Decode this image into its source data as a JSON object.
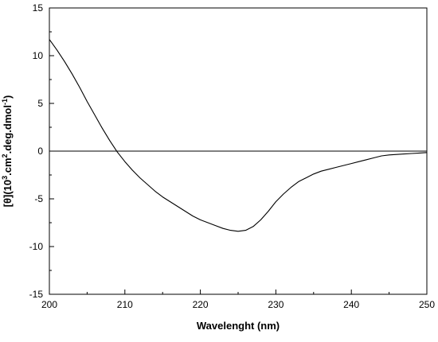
{
  "chart_data": {
    "type": "line",
    "title": "",
    "xlabel": "Wavelenght (nm)",
    "ylabel": {
      "parts": [
        {
          "text": "[θ](10",
          "sup": false
        },
        {
          "text": "3",
          "sup": true
        },
        {
          "text": ".cm",
          "sup": false
        },
        {
          "text": "2",
          "sup": true
        },
        {
          "text": ".deg.dmol",
          "sup": false
        },
        {
          "text": "-1",
          "sup": true
        },
        {
          "text": ")",
          "sup": false
        }
      ]
    },
    "xlim": [
      200,
      250
    ],
    "ylim": [
      -15,
      15
    ],
    "xticks": [
      "200",
      "210",
      "220",
      "230",
      "240",
      "250"
    ],
    "yticks": [
      "-15",
      "-10",
      "-5",
      "0",
      "5",
      "10",
      "15"
    ],
    "zero_line": 0,
    "grid": false,
    "legend": "none",
    "line_color": "#000000",
    "series": [
      {
        "x": [
          200,
          201,
          202,
          203,
          204,
          205,
          206,
          207,
          208,
          209,
          210,
          211,
          212,
          213,
          214,
          215,
          216,
          217,
          218,
          219,
          220,
          221,
          222,
          223,
          224,
          225,
          226,
          227,
          228,
          229,
          230,
          231,
          232,
          233,
          234,
          235,
          236,
          237,
          238,
          239,
          240,
          241,
          242,
          243,
          244,
          245,
          246,
          247,
          248,
          249,
          250
        ],
        "y": [
          11.7,
          10.6,
          9.4,
          8.1,
          6.7,
          5.2,
          3.8,
          2.4,
          1.1,
          -0.1,
          -1.1,
          -2.0,
          -2.8,
          -3.5,
          -4.2,
          -4.8,
          -5.3,
          -5.8,
          -6.3,
          -6.8,
          -7.2,
          -7.5,
          -7.8,
          -8.1,
          -8.3,
          -8.4,
          -8.3,
          -7.9,
          -7.2,
          -6.3,
          -5.3,
          -4.5,
          -3.8,
          -3.2,
          -2.8,
          -2.4,
          -2.1,
          -1.9,
          -1.7,
          -1.5,
          -1.3,
          -1.1,
          -0.9,
          -0.7,
          -0.5,
          -0.4,
          -0.35,
          -0.3,
          -0.25,
          -0.2,
          -0.15
        ]
      }
    ]
  }
}
